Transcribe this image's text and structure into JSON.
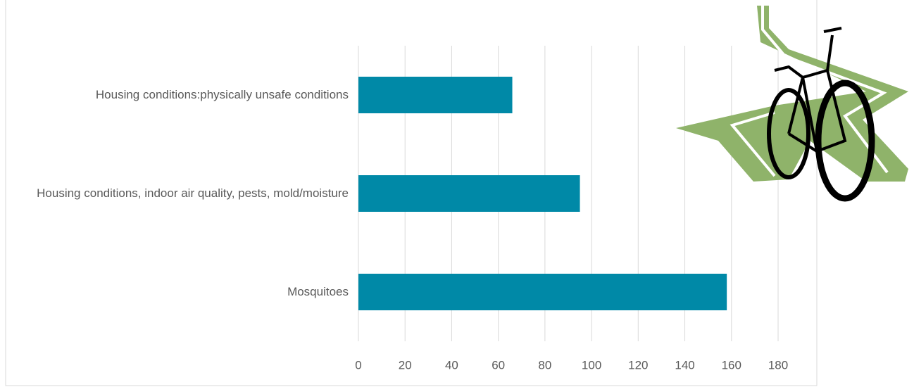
{
  "chart_data": {
    "type": "barh",
    "categories": [
      "Housing conditions:physically unsafe conditions",
      "Housing conditions, indoor air quality, pests, mold/moisture",
      "Mosquitoes"
    ],
    "values": [
      66,
      95,
      158
    ],
    "color": "#0089a7",
    "xlim": [
      0,
      180
    ],
    "xticks": [
      0,
      20,
      40,
      60,
      80,
      100,
      120,
      140,
      160,
      180
    ],
    "grid": true
  }
}
